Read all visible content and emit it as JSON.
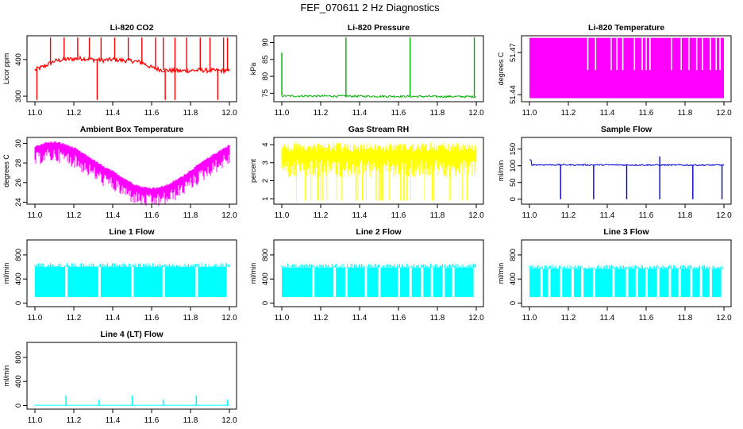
{
  "title": "FEF_070611  2 Hz Diagnostics",
  "chart_data": [
    {
      "type": "line",
      "title": "Li-820 CO2",
      "xlabel": "",
      "ylabel": "Licor ppm",
      "color": "#ff0000",
      "xlim": [
        11.0,
        12.0
      ],
      "ylim": [
        285,
        465
      ],
      "xticks": [
        "11.0",
        "11.2",
        "11.4",
        "11.6",
        "11.8",
        "12.0"
      ],
      "yticks": [
        "300",
        "400"
      ],
      "ytick_values": [
        300,
        400
      ],
      "series": [
        {
          "x": [
            11.0,
            11.05,
            11.1,
            11.15,
            11.2,
            11.25,
            11.3,
            11.35,
            11.4,
            11.45,
            11.5,
            11.55,
            11.6,
            11.65,
            11.7,
            11.75,
            11.8,
            11.85,
            11.9,
            11.95,
            12.0
          ],
          "y": [
            372,
            382,
            396,
            400,
            402,
            403,
            400,
            398,
            400,
            398,
            396,
            392,
            378,
            372,
            370,
            369,
            370,
            371,
            370,
            370,
            369
          ],
          "spike_x": [
            11.08,
            11.15,
            11.22,
            11.28,
            11.34,
            11.41,
            11.48,
            11.55,
            11.62,
            11.66,
            11.72,
            11.78,
            11.85,
            11.9,
            11.97,
            11.99
          ],
          "dip_x": [
            11.01,
            11.32,
            11.67,
            11.72,
            11.94
          ]
        }
      ]
    },
    {
      "type": "line",
      "title": "Li-820 Pressure",
      "xlabel": "",
      "ylabel": "kPa",
      "color": "#00b000",
      "xlim": [
        11.0,
        12.0
      ],
      "ylim": [
        72.5,
        92
      ],
      "xticks": [
        "11.0",
        "11.2",
        "11.4",
        "11.6",
        "11.8",
        "12.0"
      ],
      "yticks": [
        "75",
        "80",
        "85",
        "90"
      ],
      "ytick_values": [
        75,
        80,
        85,
        90
      ],
      "series": [
        {
          "x": [
            11.0,
            12.0
          ],
          "y": [
            74.2,
            74.0
          ],
          "spike_x": [
            11.0,
            11.33,
            11.66,
            11.99
          ],
          "spike_y": [
            87,
            91.5,
            91.5,
            91.5
          ]
        }
      ]
    },
    {
      "type": "area",
      "title": "Li-820 Temperature",
      "xlabel": "",
      "ylabel": "degrees C",
      "color": "#ff00ff",
      "xlim": [
        11.0,
        12.0
      ],
      "ylim": [
        51.435,
        51.482
      ],
      "xticks": [
        "11.0",
        "11.2",
        "11.4",
        "11.6",
        "11.8",
        "12.0"
      ],
      "yticks": [
        "51.44",
        "51.47"
      ],
      "ytick_values": [
        51.44,
        51.47
      ],
      "series": [
        {
          "low": 51.4375,
          "high": 51.4805,
          "drop_to": 51.4575,
          "drop_x": [
            11.3,
            11.34,
            11.42,
            11.45,
            11.48,
            11.54,
            11.58,
            11.6,
            11.62,
            11.73,
            11.78,
            11.82,
            11.86,
            11.89,
            11.93,
            11.96,
            11.98
          ]
        }
      ]
    },
    {
      "type": "line",
      "title": "Ambient Box Temperature",
      "xlabel": "",
      "ylabel": "degrees C",
      "color": "#ff00ff",
      "xlim": [
        11.0,
        12.0
      ],
      "ylim": [
        23.8,
        30.6
      ],
      "xticks": [
        "11.0",
        "11.2",
        "11.4",
        "11.6",
        "11.8",
        "12.0"
      ],
      "yticks": [
        "24",
        "26",
        "28",
        "30"
      ],
      "ytick_values": [
        24,
        26,
        28,
        30
      ],
      "series": [
        {
          "x": [
            11.0,
            11.05,
            11.1,
            11.15,
            11.2,
            11.25,
            11.3,
            11.35,
            11.4,
            11.45,
            11.5,
            11.55,
            11.6,
            11.65,
            11.7,
            11.75,
            11.8,
            11.85,
            11.9,
            11.95,
            12.0
          ],
          "y": [
            29.3,
            29.7,
            29.8,
            29.6,
            29.2,
            28.6,
            28.0,
            27.3,
            26.8,
            26.2,
            25.6,
            25.2,
            25.1,
            25.2,
            25.6,
            26.2,
            26.9,
            27.6,
            28.3,
            28.9,
            29.5
          ],
          "spread": 1.4
        }
      ]
    },
    {
      "type": "area",
      "title": "Gas Stream RH",
      "xlabel": "",
      "ylabel": "percent",
      "color": "#ffff00",
      "xlim": [
        11.0,
        12.0
      ],
      "ylim": [
        0.7,
        4.4
      ],
      "xticks": [
        "11.0",
        "11.2",
        "11.4",
        "11.6",
        "11.8",
        "12.0"
      ],
      "yticks": [
        "1",
        "2",
        "3",
        "4"
      ],
      "ytick_values": [
        1,
        2,
        3,
        4
      ],
      "series": [
        {
          "low": 0.9,
          "high": 4.1
        }
      ]
    },
    {
      "type": "line",
      "title": "Sample Flow",
      "xlabel": "",
      "ylabel": "ml/min",
      "color": "#0000dd",
      "xlim": [
        11.0,
        12.0
      ],
      "ylim": [
        -15,
        185
      ],
      "xticks": [
        "11.0",
        "11.2",
        "11.4",
        "11.6",
        "11.8",
        "12.0"
      ],
      "yticks": [
        "0",
        "50",
        "100",
        "150"
      ],
      "ytick_values": [
        0,
        50,
        100,
        150
      ],
      "series": [
        {
          "x": [
            11.0,
            12.0
          ],
          "y": [
            103,
            102
          ],
          "start_y": 117,
          "dip_x": [
            11.16,
            11.33,
            11.5,
            11.67,
            11.84,
            11.99
          ],
          "spike_x": [
            11.67
          ]
        }
      ]
    },
    {
      "type": "area",
      "title": "Line 1 Flow",
      "xlabel": "",
      "ylabel": "ml/min",
      "color": "#00ffff",
      "xlim": [
        11.0,
        12.0
      ],
      "ylim": [
        -60,
        1050
      ],
      "xticks": [
        "11.0",
        "11.2",
        "11.4",
        "11.6",
        "11.8",
        "12.0"
      ],
      "yticks": [
        "0",
        "400",
        "800"
      ],
      "ytick_values": [
        0,
        400,
        800
      ],
      "series": [
        {
          "low": 100,
          "high": 600,
          "gap_x": [
            11.16,
            11.33,
            11.5,
            11.66,
            11.83,
            11.99
          ]
        }
      ]
    },
    {
      "type": "area",
      "title": "Line 2 Flow",
      "xlabel": "",
      "ylabel": "ml/min",
      "color": "#00ffff",
      "xlim": [
        11.0,
        12.0
      ],
      "ylim": [
        -60,
        1050
      ],
      "xticks": [
        "11.0",
        "11.2",
        "11.4",
        "11.6",
        "11.8",
        "12.0"
      ],
      "yticks": [
        "0",
        "400",
        "800"
      ],
      "ytick_values": [
        0,
        400,
        800
      ],
      "series": [
        {
          "low": 100,
          "high": 590,
          "gap_x": [
            11.16,
            11.27,
            11.33,
            11.43,
            11.5,
            11.6,
            11.66,
            11.72,
            11.77,
            11.83,
            11.88,
            11.99
          ]
        }
      ]
    },
    {
      "type": "area",
      "title": "Line 3 Flow",
      "xlabel": "",
      "ylabel": "ml/min",
      "color": "#00ffff",
      "xlim": [
        11.0,
        12.0
      ],
      "ylim": [
        -60,
        1050
      ],
      "xticks": [
        "11.0",
        "11.2",
        "11.4",
        "11.6",
        "11.8",
        "12.0"
      ],
      "yticks": [
        "0",
        "400",
        "800"
      ],
      "ytick_values": [
        0,
        400,
        800
      ],
      "series": [
        {
          "low": 100,
          "high": 570,
          "gap_x": [
            11.06,
            11.1,
            11.16,
            11.22,
            11.27,
            11.33,
            11.43,
            11.5,
            11.55,
            11.6,
            11.66,
            11.72,
            11.77,
            11.83,
            11.88,
            11.93,
            11.99
          ]
        }
      ]
    },
    {
      "type": "line",
      "title": "Line 4 (LT) Flow",
      "xlabel": "",
      "ylabel": "ml/min",
      "color": "#00ffff",
      "xlim": [
        11.0,
        12.0
      ],
      "ylim": [
        -60,
        1050
      ],
      "xticks": [
        "11.0",
        "11.2",
        "11.4",
        "11.6",
        "11.8",
        "12.0"
      ],
      "yticks": [
        "0",
        "400",
        "800"
      ],
      "ytick_values": [
        0,
        400,
        800
      ],
      "series": [
        {
          "x": [
            11.0,
            12.0
          ],
          "y": [
            5,
            5
          ],
          "spike_x": [
            11.16,
            11.33,
            11.5,
            11.66,
            11.83,
            11.99
          ],
          "spike_y": [
            170,
            100,
            170,
            100,
            170,
            100
          ]
        }
      ]
    }
  ]
}
